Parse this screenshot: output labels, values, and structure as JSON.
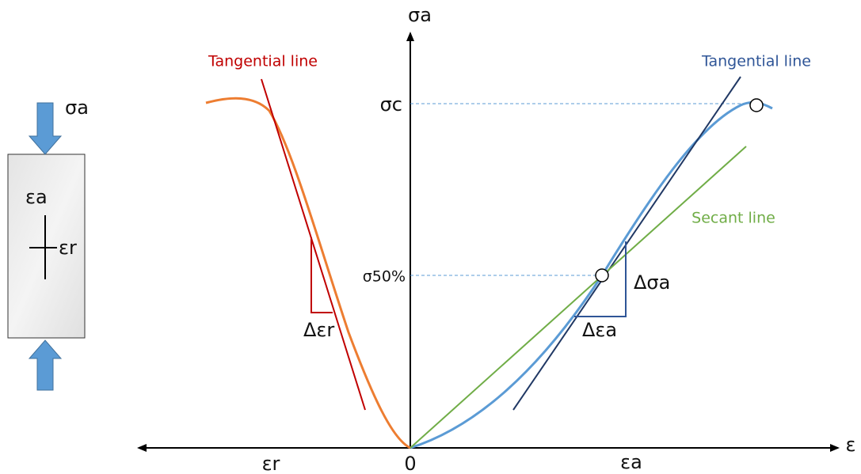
{
  "axes": {
    "y_label": "σa",
    "x_label": "ε",
    "origin": "0",
    "x_left": "εr",
    "x_right": "εa"
  },
  "annotations": {
    "tangent_radial": "Tangential line",
    "tangent_axial": "Tangential line",
    "secant": "Secant line",
    "sigma_c": "σc",
    "sigma_50": "σ50%",
    "delta_sigma_a": "Δσa",
    "delta_eps_a": "Δεa",
    "delta_eps_r": "Δεr"
  },
  "specimen": {
    "load": "σa",
    "axial_strain": "εa",
    "radial_strain": "εr"
  }
}
